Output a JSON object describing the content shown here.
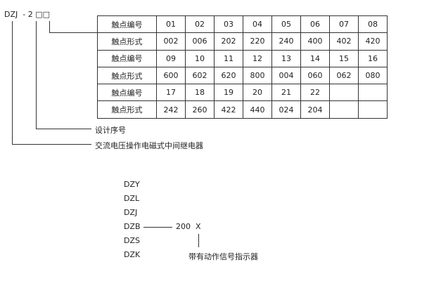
{
  "model": {
    "prefix": "DZJ",
    "dash": "-",
    "digit": "2",
    "boxes": "□□"
  },
  "table": {
    "rows": [
      {
        "label": "触点编号",
        "values": [
          "01",
          "02",
          "03",
          "04",
          "05",
          "06",
          "07",
          "08"
        ]
      },
      {
        "label": "触点形式",
        "values": [
          "002",
          "006",
          "202",
          "220",
          "240",
          "400",
          "402",
          "420"
        ]
      },
      {
        "label": "触点编号",
        "values": [
          "09",
          "10",
          "11",
          "12",
          "13",
          "14",
          "15",
          "16"
        ]
      },
      {
        "label": "触点形式",
        "values": [
          "600",
          "602",
          "620",
          "800",
          "004",
          "060",
          "062",
          "080"
        ]
      },
      {
        "label": "触点编号",
        "values": [
          "17",
          "18",
          "19",
          "20",
          "21",
          "22",
          "",
          ""
        ]
      },
      {
        "label": "触点形式",
        "values": [
          "242",
          "260",
          "422",
          "440",
          "024",
          "204",
          "",
          ""
        ]
      }
    ]
  },
  "labels": {
    "design_no": "设计序号",
    "relay_type": "交流电压操作电磁式中间继电器"
  },
  "series": [
    "DZY",
    "DZL",
    "DZJ",
    "DZB",
    "DZS",
    "DZK"
  ],
  "variant": {
    "code": "200",
    "suffix": "X",
    "suffix_label": "带有动作信号指示器"
  }
}
